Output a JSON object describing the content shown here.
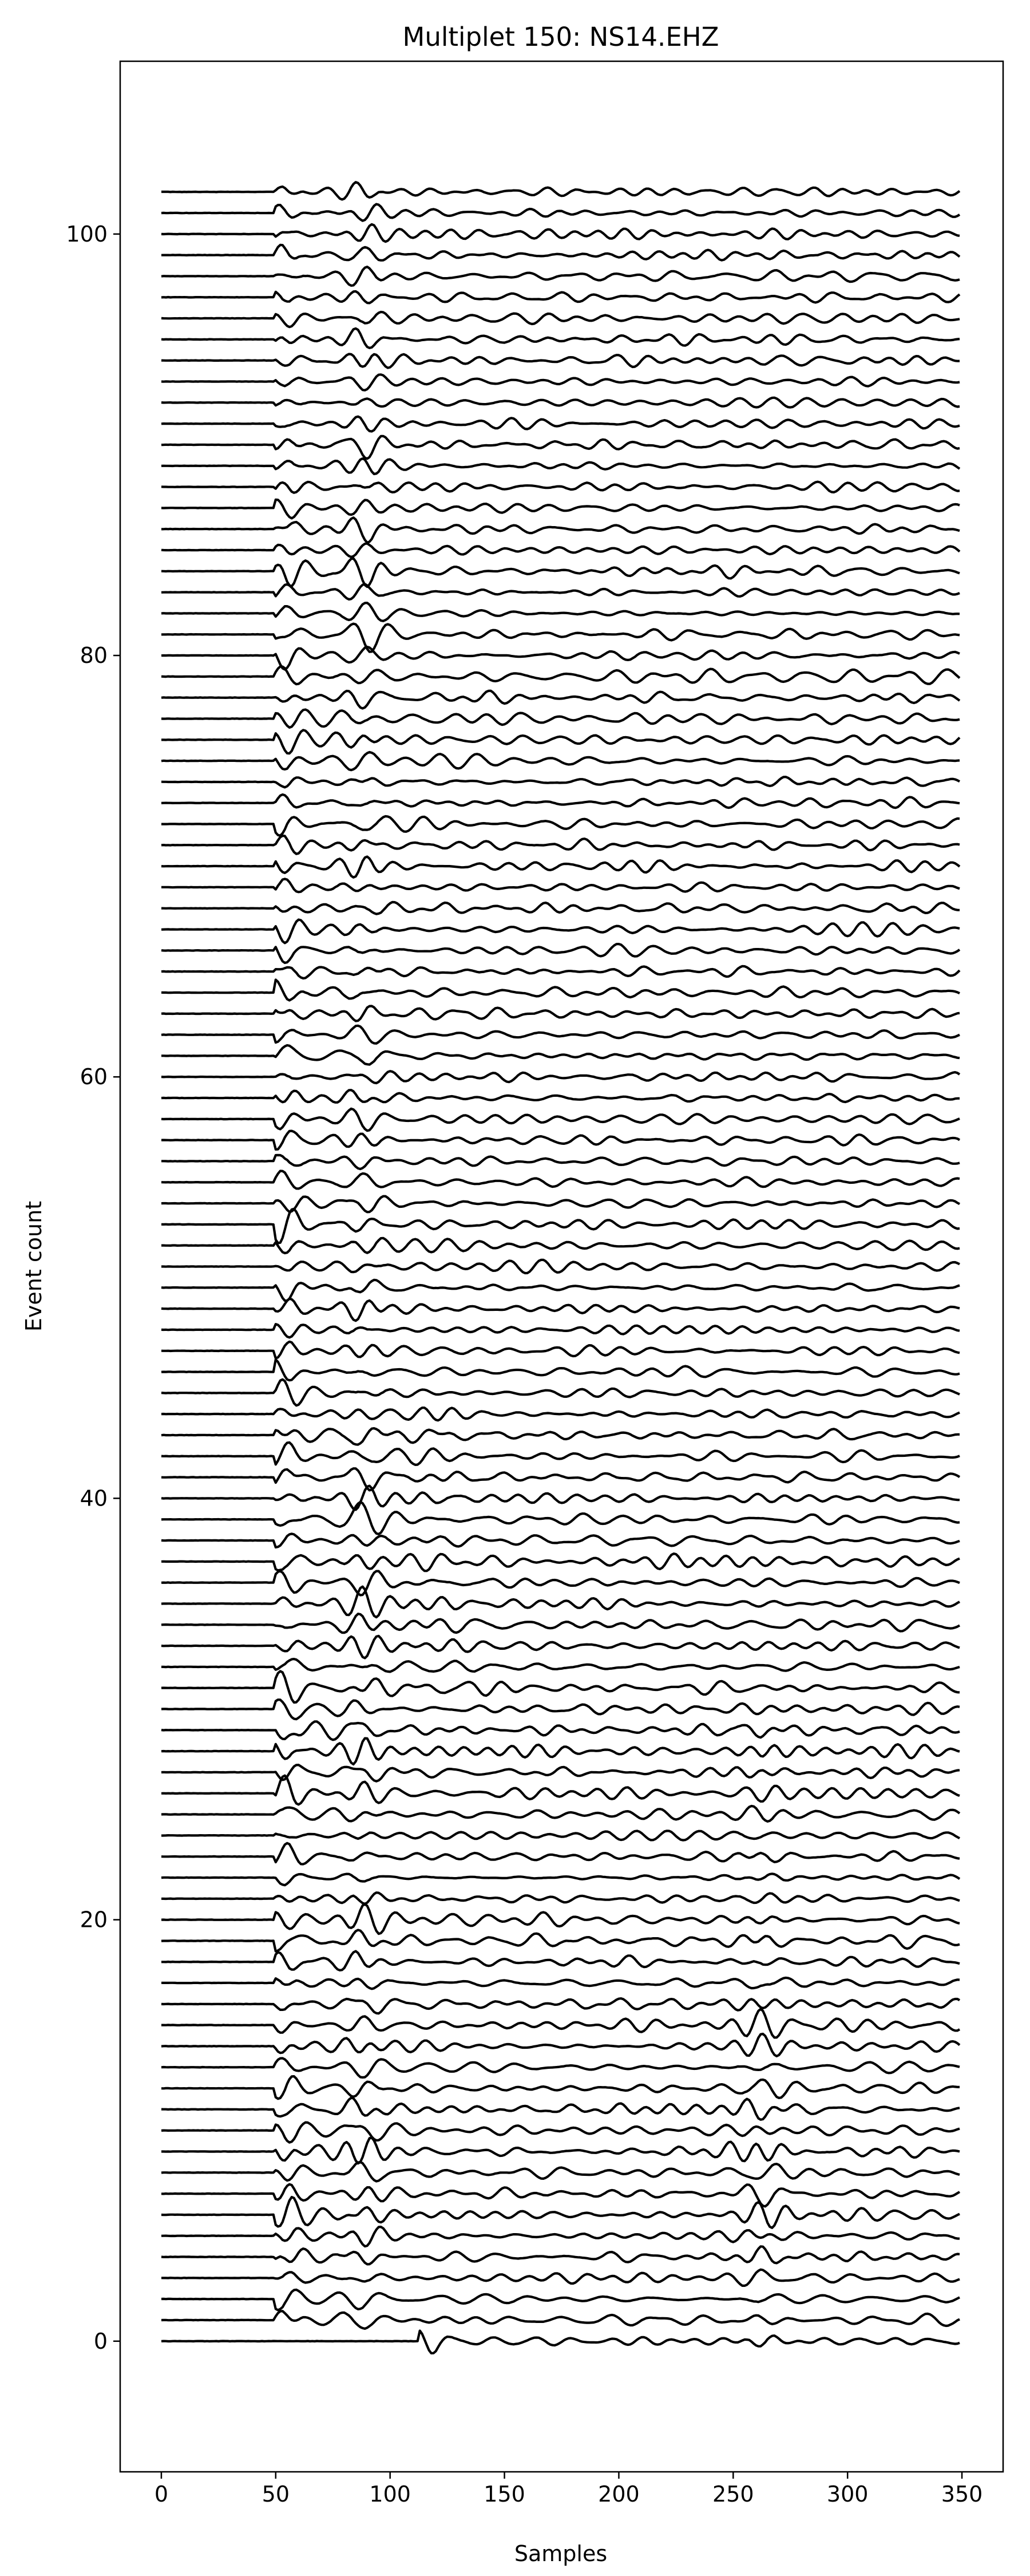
{
  "chart_data": {
    "type": "line",
    "title": "Multiplet 150: NS14.EHZ",
    "xlabel": "Samples",
    "ylabel": "Event count",
    "xlim": [
      -18,
      368
    ],
    "ylim": [
      -6.2,
      108.2
    ],
    "x_ticks": [
      0,
      50,
      100,
      150,
      200,
      250,
      300,
      350
    ],
    "y_ticks": [
      0,
      20,
      40,
      60,
      80,
      100
    ],
    "x_tick_labels": [
      "0",
      "50",
      "100",
      "150",
      "200",
      "250",
      "300",
      "350"
    ],
    "y_tick_labels": [
      "0",
      "20",
      "40",
      "60",
      "80",
      "100"
    ],
    "grid": false,
    "line_color": "#000000",
    "trace_count": 103,
    "trace_length_samples": 350,
    "event_offsets": [
      0,
      1,
      2,
      3,
      4,
      5,
      6,
      7,
      8,
      9,
      10,
      11,
      12,
      13,
      14,
      15,
      16,
      17,
      18,
      19,
      20,
      21,
      22,
      23,
      24,
      25,
      26,
      27,
      28,
      29,
      30,
      31,
      32,
      33,
      34,
      35,
      36,
      37,
      38,
      39,
      40,
      41,
      42,
      43,
      44,
      45,
      46,
      47,
      48,
      49,
      50,
      51,
      52,
      53,
      54,
      55,
      56,
      57,
      58,
      59,
      60,
      61,
      62,
      63,
      64,
      65,
      66,
      67,
      68,
      69,
      70,
      71,
      72,
      73,
      74,
      75,
      76,
      77,
      78,
      79,
      80,
      81,
      82,
      83,
      84,
      85,
      86,
      87,
      88,
      89,
      90,
      91,
      92,
      93,
      94,
      95,
      96,
      97,
      98,
      99,
      100,
      101,
      102
    ],
    "onset_sample_first_event": 113,
    "onset_sample_other_events": 50
  }
}
